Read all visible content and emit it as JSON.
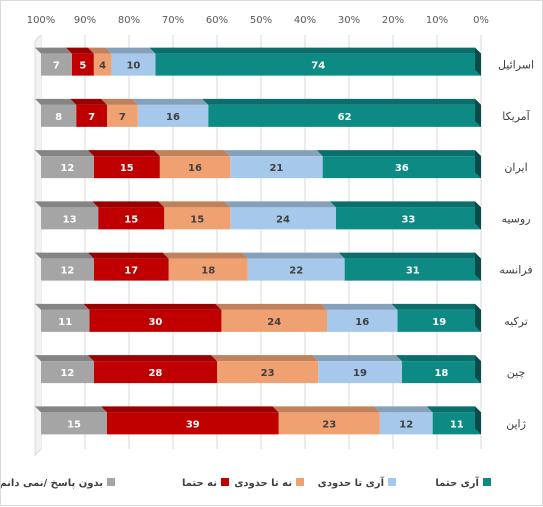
{
  "chart_data": {
    "type": "bar",
    "orientation": "horizontal",
    "stacked": "percent",
    "x_axis_direction": "right-to-left",
    "xlim": [
      0,
      100
    ],
    "x_ticks": [
      "0%",
      "10%",
      "20%",
      "30%",
      "40%",
      "50%",
      "60%",
      "70%",
      "80%",
      "90%",
      "100%"
    ],
    "categories": [
      "اسرائیل",
      "آمریکا",
      "ایران",
      "روسیه",
      "فرانسه",
      "ترکیه",
      "چین",
      "ژاپن"
    ],
    "series": [
      {
        "name": "آری حتما",
        "color": "#0e8a84",
        "label_color": "#ffffff",
        "values": [
          74,
          62,
          36,
          33,
          31,
          19,
          18,
          11
        ]
      },
      {
        "name": "آری تا حدودی",
        "color": "#a6c8ea",
        "label_color": "#404040",
        "values": [
          10,
          16,
          21,
          24,
          22,
          16,
          19,
          12
        ]
      },
      {
        "name": "نه تا حدودی",
        "color": "#f0a172",
        "label_color": "#404040",
        "values": [
          4,
          7,
          16,
          15,
          18,
          24,
          23,
          23
        ]
      },
      {
        "name": "نه حتما",
        "color": "#c00000",
        "label_color": "#ffffff",
        "values": [
          5,
          7,
          15,
          15,
          17,
          30,
          28,
          39
        ]
      },
      {
        "name": "بدون پاسخ /نمی دانم",
        "color": "#a5a5a5",
        "label_color": "#ffffff",
        "values": [
          7,
          8,
          12,
          13,
          12,
          11,
          12,
          15
        ]
      }
    ],
    "grid": true,
    "legend_position": "bottom"
  }
}
